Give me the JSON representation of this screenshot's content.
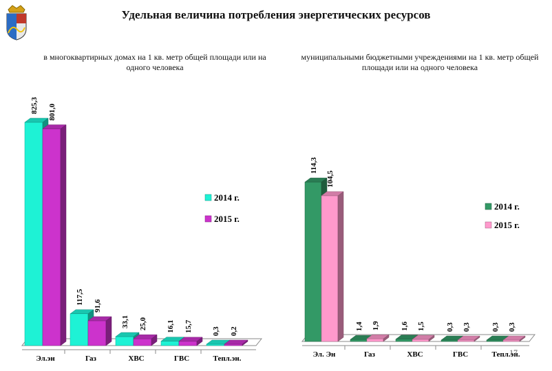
{
  "title": "Удельная величина потребления энергетических ресурсов",
  "page_number": "17",
  "colors": {
    "left_2014": "#1ef2d5",
    "left_2015": "#cc33cc",
    "right_2014": "#339966",
    "right_2015": "#ff99cc"
  },
  "chart_data": [
    {
      "type": "bar",
      "title": "в многоквартирных домах на 1 кв. метр общей площади или на одного человека",
      "categories": [
        "Эл.эн",
        "Газ",
        "ХВС",
        "ГВС",
        "Тепл.эн."
      ],
      "series": [
        {
          "name": "2014 г.",
          "values": [
            825.3,
            117.5,
            33.1,
            16.1,
            0.3
          ],
          "labels": [
            "825,3",
            "117,5",
            "33,1",
            "16,1",
            "0,3"
          ]
        },
        {
          "name": "2015 г.",
          "values": [
            801.0,
            91.6,
            25.0,
            15.7,
            0.2
          ],
          "labels": [
            "801,0",
            "91,6",
            "25,0",
            "15,7",
            "0,2"
          ]
        }
      ],
      "legend": "right"
    },
    {
      "type": "bar",
      "title": "муниципальными бюджетными учреждениями на 1 кв. метр общей площади или на одного человека",
      "categories": [
        "Эл. Эн",
        "Газ",
        "ХВС",
        "ГВС",
        "Тепл.эн."
      ],
      "series": [
        {
          "name": "2014 г.",
          "values": [
            114.3,
            1.4,
            1.6,
            0.3,
            0.3
          ],
          "labels": [
            "114,3",
            "1,4",
            "1,6",
            "0,3",
            "0,3"
          ]
        },
        {
          "name": "2015 г.",
          "values": [
            104.5,
            1.9,
            1.5,
            0.3,
            0.3
          ],
          "labels": [
            "104,5",
            "1,9",
            "1,5",
            "0,3",
            "0,3"
          ]
        }
      ],
      "legend": "right"
    }
  ]
}
